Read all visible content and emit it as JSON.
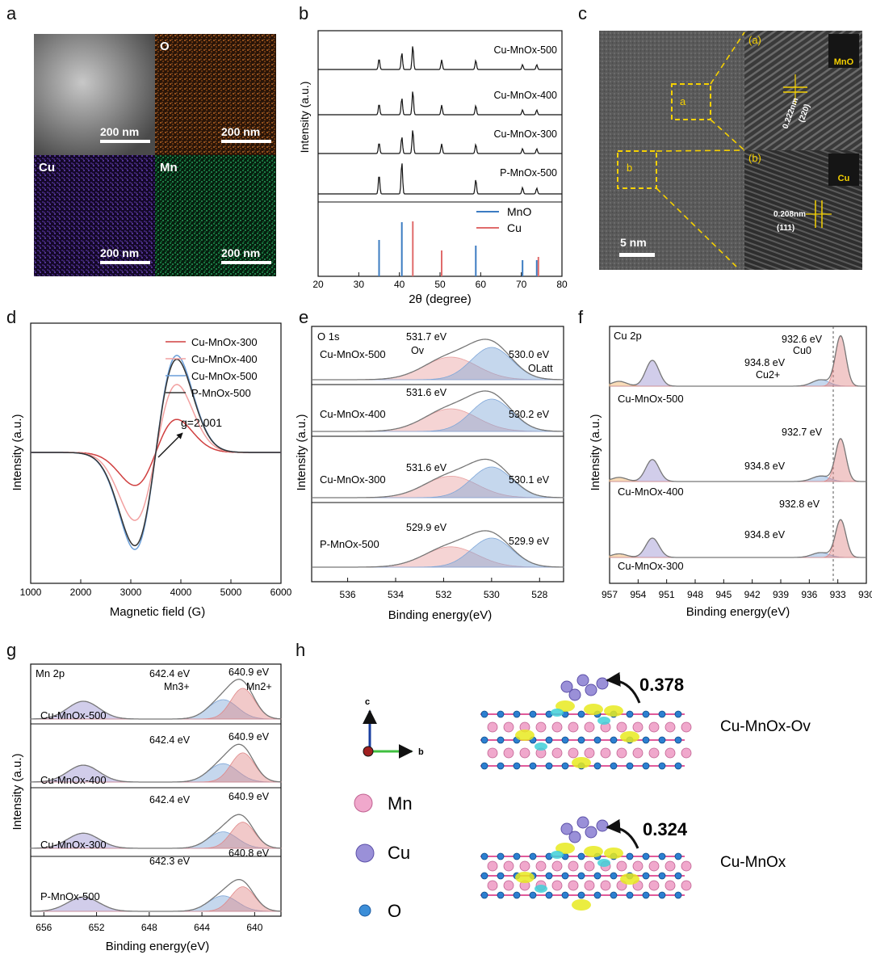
{
  "panels": {
    "a": {
      "letter": "a",
      "tiles": [
        {
          "label": "",
          "scale": "200 nm",
          "color": "#777777"
        },
        {
          "label": "O",
          "scale": "200 nm",
          "color": "#d2691e"
        },
        {
          "label": "Cu",
          "scale": "200 nm",
          "color": "#7b4fe0"
        },
        {
          "label": "Mn",
          "scale": "200 nm",
          "color": "#22b060"
        }
      ]
    },
    "b": {
      "letter": "b",
      "ylabel": "Intensity (a.u.)",
      "xlabel": "2θ (degree)",
      "traces": [
        "Cu-MnOx-500",
        "Cu-MnOx-400",
        "Cu-MnOx-300",
        "P-MnOx-500"
      ],
      "legend": [
        "MnO",
        "Cu"
      ],
      "xticks": [
        "20",
        "30",
        "40",
        "50",
        "60",
        "70",
        "80"
      ]
    },
    "c": {
      "letter": "c",
      "box_a": "a",
      "box_b": "b",
      "inset_a_tag": "(a)",
      "inset_b_tag": "(b)",
      "fft_a": "MnO",
      "fft_b": "Cu",
      "d_a": "0.222nm",
      "plane_a": "(220)",
      "d_b": "0.208nm",
      "plane_b": "(111)",
      "scale": "5 nm"
    },
    "d": {
      "letter": "d",
      "ylabel": "Intensity (a.u.)",
      "xlabel": "Magnetic field (G)",
      "legend": [
        "Cu-MnOx-300",
        "Cu-MnOx-400",
        "Cu-MnOx-500",
        "P-MnOx-500"
      ],
      "annotation": "g=2.001",
      "xticks": [
        "1000",
        "2000",
        "3000",
        "4000",
        "5000",
        "6000"
      ]
    },
    "e": {
      "letter": "e",
      "title": "O 1s",
      "ylabel": "Intensity (a.u.)",
      "xlabel": "Binding energy(eV)",
      "samples": [
        "Cu-MnOx-500",
        "Cu-MnOx-400",
        "Cu-MnOx-300",
        "P-MnOx-500"
      ],
      "peaks_left": [
        "531.7 eV",
        "531.6 eV",
        "531.6 eV",
        "529.9 eV"
      ],
      "peaks_right": [
        "530.0 eV",
        "530.2 eV",
        "530.1 eV",
        "529.9 eV"
      ],
      "ov": "Ov",
      "olatt": "OLatt",
      "xticks": [
        "536",
        "534",
        "532",
        "530",
        "528"
      ]
    },
    "f": {
      "letter": "f",
      "title": "Cu 2p",
      "ylabel": "Intensity (a.u.)",
      "xlabel": "Binding energy(eV)",
      "samples": [
        "Cu-MnOx-500",
        "Cu-MnOx-400",
        "Cu-MnOx-300"
      ],
      "peaks_main": [
        "932.6 eV",
        "932.7 eV",
        "932.8 eV"
      ],
      "peaks_side": [
        "934.8 eV",
        "934.8 eV",
        "934.8 eV"
      ],
      "cu0": "Cu0",
      "cu2": "Cu2+",
      "xticks": [
        "957",
        "954",
        "951",
        "948",
        "945",
        "942",
        "939",
        "936",
        "933",
        "930"
      ]
    },
    "g": {
      "letter": "g",
      "title": "Mn 2p",
      "ylabel": "Intensity (a.u.)",
      "xlabel": "Binding energy(eV)",
      "samples": [
        "Cu-MnOx-500",
        "Cu-MnOx-400",
        "Cu-MnOx-300",
        "P-MnOx-500"
      ],
      "peaks_left": [
        "642.4 eV",
        "642.4 eV",
        "642.4 eV",
        "642.3 eV"
      ],
      "peaks_right": [
        "640.9 eV",
        "640.9 eV",
        "640.9 eV",
        "640.8 eV"
      ],
      "mn3": "Mn3+",
      "mn2": "Mn2+",
      "xticks": [
        "656",
        "652",
        "648",
        "644",
        "640"
      ]
    },
    "h": {
      "letter": "h",
      "axes": [
        "c",
        "b"
      ],
      "legend": [
        "Mn",
        "Cu",
        "O"
      ],
      "values": [
        "0.378",
        "0.324"
      ],
      "labels": [
        "Cu-MnOx-Ov",
        "Cu-MnOx"
      ]
    }
  },
  "colors": {
    "red": "#e06b6b",
    "blue": "#3c7cc2",
    "pink": "#f2a0a0",
    "purple": "#8a80c8"
  }
}
